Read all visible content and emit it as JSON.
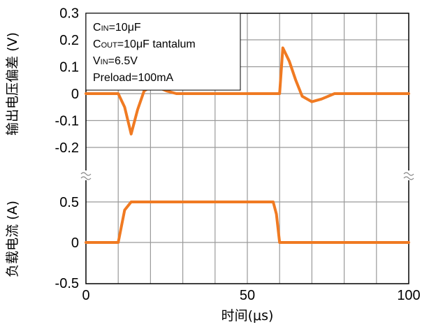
{
  "chart_data": [
    {
      "type": "line",
      "ylabel": "输出电压偏差 (V)",
      "ylim": [
        -0.2,
        0.3
      ],
      "yticks": [
        {
          "value": 0.3,
          "label": "0.3"
        },
        {
          "value": 0.2,
          "label": "0.2"
        },
        {
          "value": 0.1,
          "label": "0.1"
        },
        {
          "value": 0,
          "label": "0"
        },
        {
          "value": -0.1,
          "label": "-0.1"
        },
        {
          "value": -0.2,
          "label": "-0.2"
        }
      ],
      "xlim": [
        0,
        100
      ],
      "color": "#f07a22",
      "series": [
        {
          "x": [
            0,
            10,
            12,
            14,
            16,
            18,
            20,
            22,
            25,
            28,
            35,
            50,
            58,
            60,
            61,
            63,
            65,
            67,
            70,
            73,
            77,
            85,
            100
          ],
          "values": [
            0,
            0,
            -0.05,
            -0.15,
            -0.06,
            0.01,
            0.025,
            0.025,
            0.01,
            0,
            0,
            0,
            0,
            0,
            0.17,
            0.12,
            0.05,
            -0.01,
            -0.03,
            -0.02,
            0,
            0,
            0
          ]
        }
      ],
      "annotations": [
        {
          "main": "C",
          "sub": "IN",
          "rest": "=10μF"
        },
        {
          "main": "C",
          "sub": "OUT",
          "rest": "=10μF tantalum"
        },
        {
          "main": "V",
          "sub": "IN",
          "rest": "=6.5V"
        },
        {
          "main": "Preload=100mA",
          "sub": "",
          "rest": ""
        }
      ]
    },
    {
      "type": "line",
      "ylabel": "负载电流 (A)",
      "ylim": [
        -0.5,
        0.65
      ],
      "yticks": [
        {
          "value": 0.5,
          "label": "0.5"
        },
        {
          "value": 0,
          "label": "0"
        },
        {
          "value": -0.5,
          "label": "-0.5"
        }
      ],
      "xlabel": "时间(μs)",
      "xlim": [
        0,
        100
      ],
      "xticks": [
        {
          "value": 0,
          "label": "0"
        },
        {
          "value": 50,
          "label": "50"
        },
        {
          "value": 100,
          "label": "100"
        }
      ],
      "color": "#f07a22",
      "series": [
        {
          "x": [
            0,
            10,
            12,
            14,
            50,
            58,
            59,
            60,
            100
          ],
          "values": [
            0,
            0,
            0.4,
            0.5,
            0.5,
            0.5,
            0.35,
            0,
            0
          ]
        }
      ]
    }
  ]
}
